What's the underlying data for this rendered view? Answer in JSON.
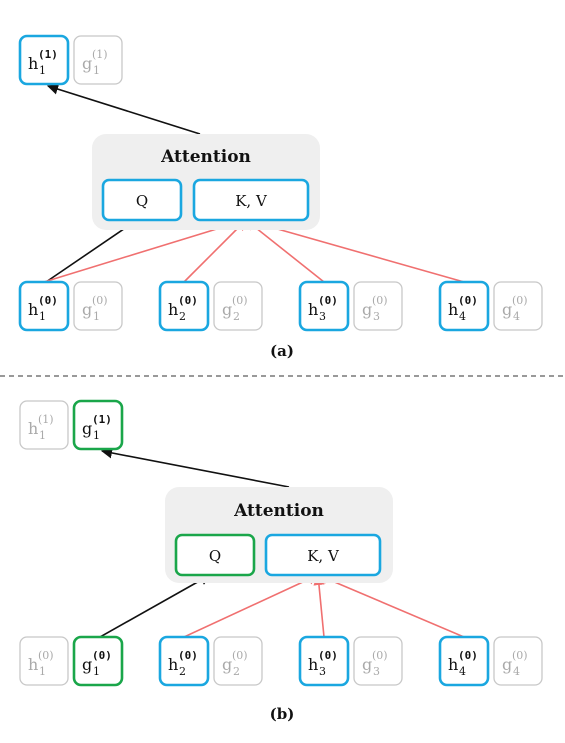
{
  "colors": {
    "blue": "#1aa7e0",
    "green": "#1aa64a",
    "gray": "#c8c8c8",
    "text": "#111111",
    "text_faded": "#aaaaaa",
    "attention_bg": "#efefef",
    "arrow_black": "#111111",
    "arrow_red": "#f07070"
  },
  "panels": [
    {
      "caption": "(a)",
      "attention": {
        "title": "Attention",
        "q_label": "Q",
        "kv_label": "K, V",
        "q_color": "blue"
      },
      "top": [
        {
          "base": "h",
          "sub": "1",
          "sup": "(1)",
          "style": "blue"
        },
        {
          "base": "g",
          "sub": "1",
          "sup": "(1)",
          "style": "gray"
        }
      ],
      "bottom": [
        {
          "base": "h",
          "sub": "1",
          "sup": "(0)",
          "style": "blue"
        },
        {
          "base": "g",
          "sub": "1",
          "sup": "(0)",
          "style": "gray"
        },
        {
          "base": "h",
          "sub": "2",
          "sup": "(0)",
          "style": "blue"
        },
        {
          "base": "g",
          "sub": "2",
          "sup": "(0)",
          "style": "gray"
        },
        {
          "base": "h",
          "sub": "3",
          "sup": "(0)",
          "style": "blue"
        },
        {
          "base": "g",
          "sub": "3",
          "sup": "(0)",
          "style": "gray"
        },
        {
          "base": "h",
          "sub": "4",
          "sup": "(0)",
          "style": "blue"
        },
        {
          "base": "g",
          "sub": "4",
          "sup": "(0)",
          "style": "gray"
        }
      ]
    },
    {
      "caption": "(b)",
      "attention": {
        "title": "Attention",
        "q_label": "Q",
        "kv_label": "K, V",
        "q_color": "green"
      },
      "top": [
        {
          "base": "h",
          "sub": "1",
          "sup": "(1)",
          "style": "gray"
        },
        {
          "base": "g",
          "sub": "1",
          "sup": "(1)",
          "style": "green"
        }
      ],
      "bottom": [
        {
          "base": "h",
          "sub": "1",
          "sup": "(0)",
          "style": "gray"
        },
        {
          "base": "g",
          "sub": "1",
          "sup": "(0)",
          "style": "green"
        },
        {
          "base": "h",
          "sub": "2",
          "sup": "(0)",
          "style": "blue"
        },
        {
          "base": "g",
          "sub": "2",
          "sup": "(0)",
          "style": "gray"
        },
        {
          "base": "h",
          "sub": "3",
          "sup": "(0)",
          "style": "blue"
        },
        {
          "base": "g",
          "sub": "3",
          "sup": "(0)",
          "style": "gray"
        },
        {
          "base": "h",
          "sub": "4",
          "sup": "(0)",
          "style": "blue"
        },
        {
          "base": "g",
          "sub": "4",
          "sup": "(0)",
          "style": "gray"
        }
      ]
    }
  ]
}
